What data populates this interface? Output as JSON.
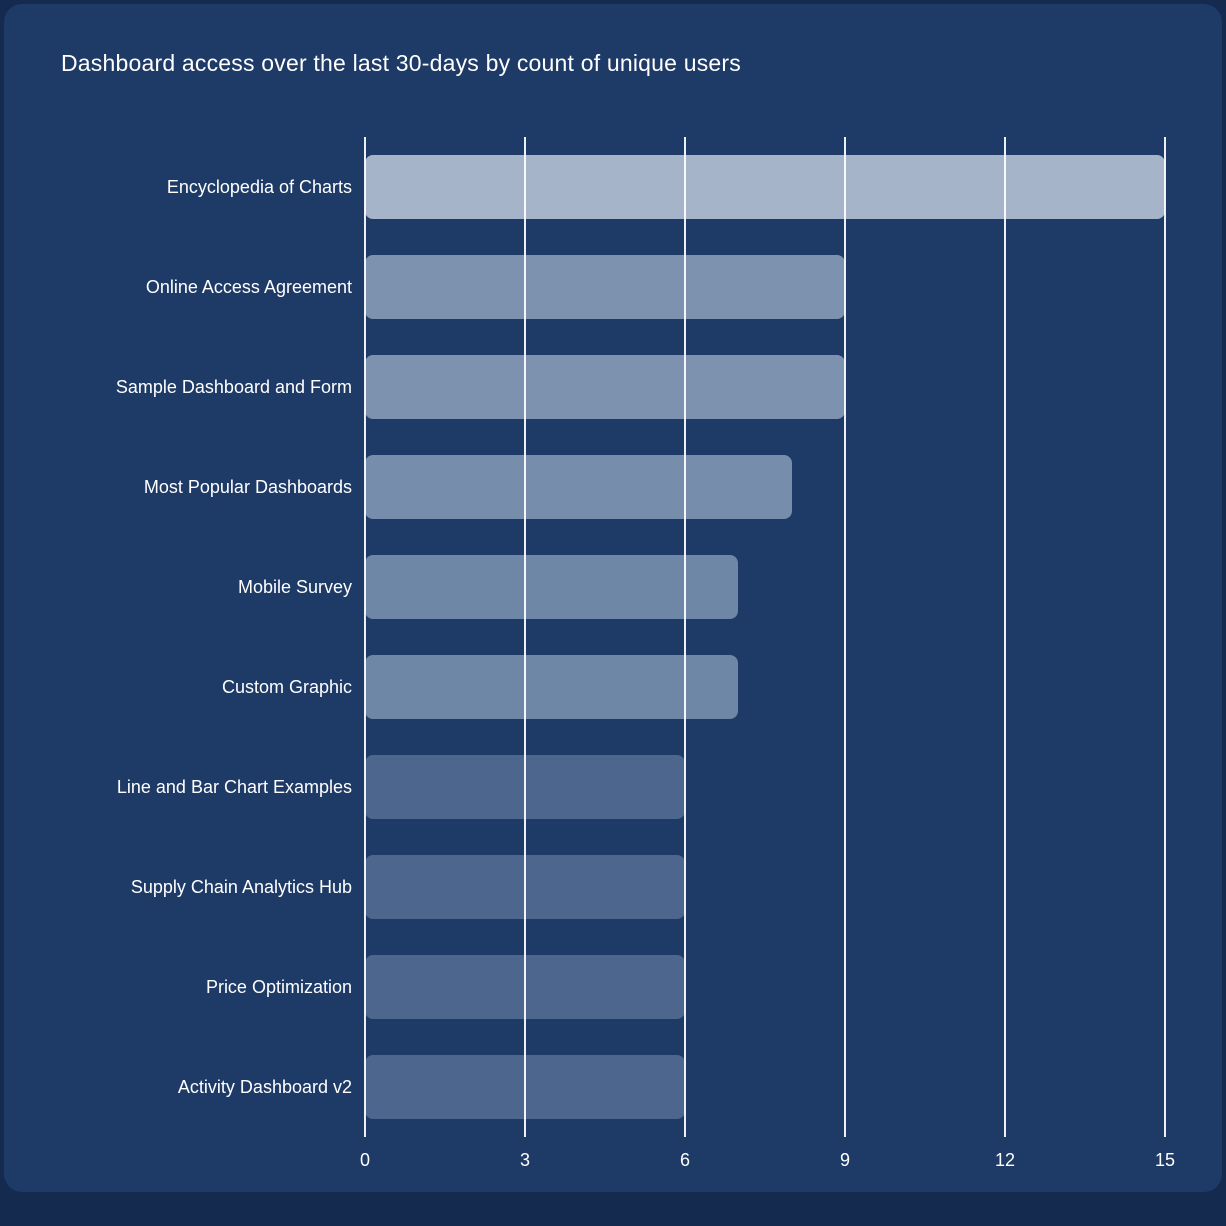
{
  "chart_data": {
    "type": "bar",
    "orientation": "horizontal",
    "title": "Dashboard access over the last 30-days by count of unique users",
    "categories": [
      "Encyclopedia of Charts",
      "Online Access Agreement",
      "Sample Dashboard and Form",
      "Most Popular Dashboards",
      "Mobile Survey",
      "Custom Graphic",
      "Line and Bar Chart Examples",
      "Supply Chain Analytics Hub",
      "Price Optimization",
      "Activity Dashboard v2"
    ],
    "values": [
      15,
      9,
      9,
      8,
      7,
      7,
      6,
      6,
      6,
      6
    ],
    "bar_colors": [
      "#a6b4ca",
      "#7d92af",
      "#7d92af",
      "#768dab",
      "#6f87a6",
      "#6f87a6",
      "#4d668e",
      "#4d668e",
      "#4d668e",
      "#4d668e"
    ],
    "xlabel": "",
    "ylabel": "",
    "xlim": [
      0,
      15
    ],
    "xticks": [
      0,
      3,
      6,
      9,
      12,
      15
    ],
    "grid": "vertical white gridlines drawn over bars",
    "legend": "none",
    "background_color": "#1e3a66",
    "text_color": "#ffffff"
  }
}
